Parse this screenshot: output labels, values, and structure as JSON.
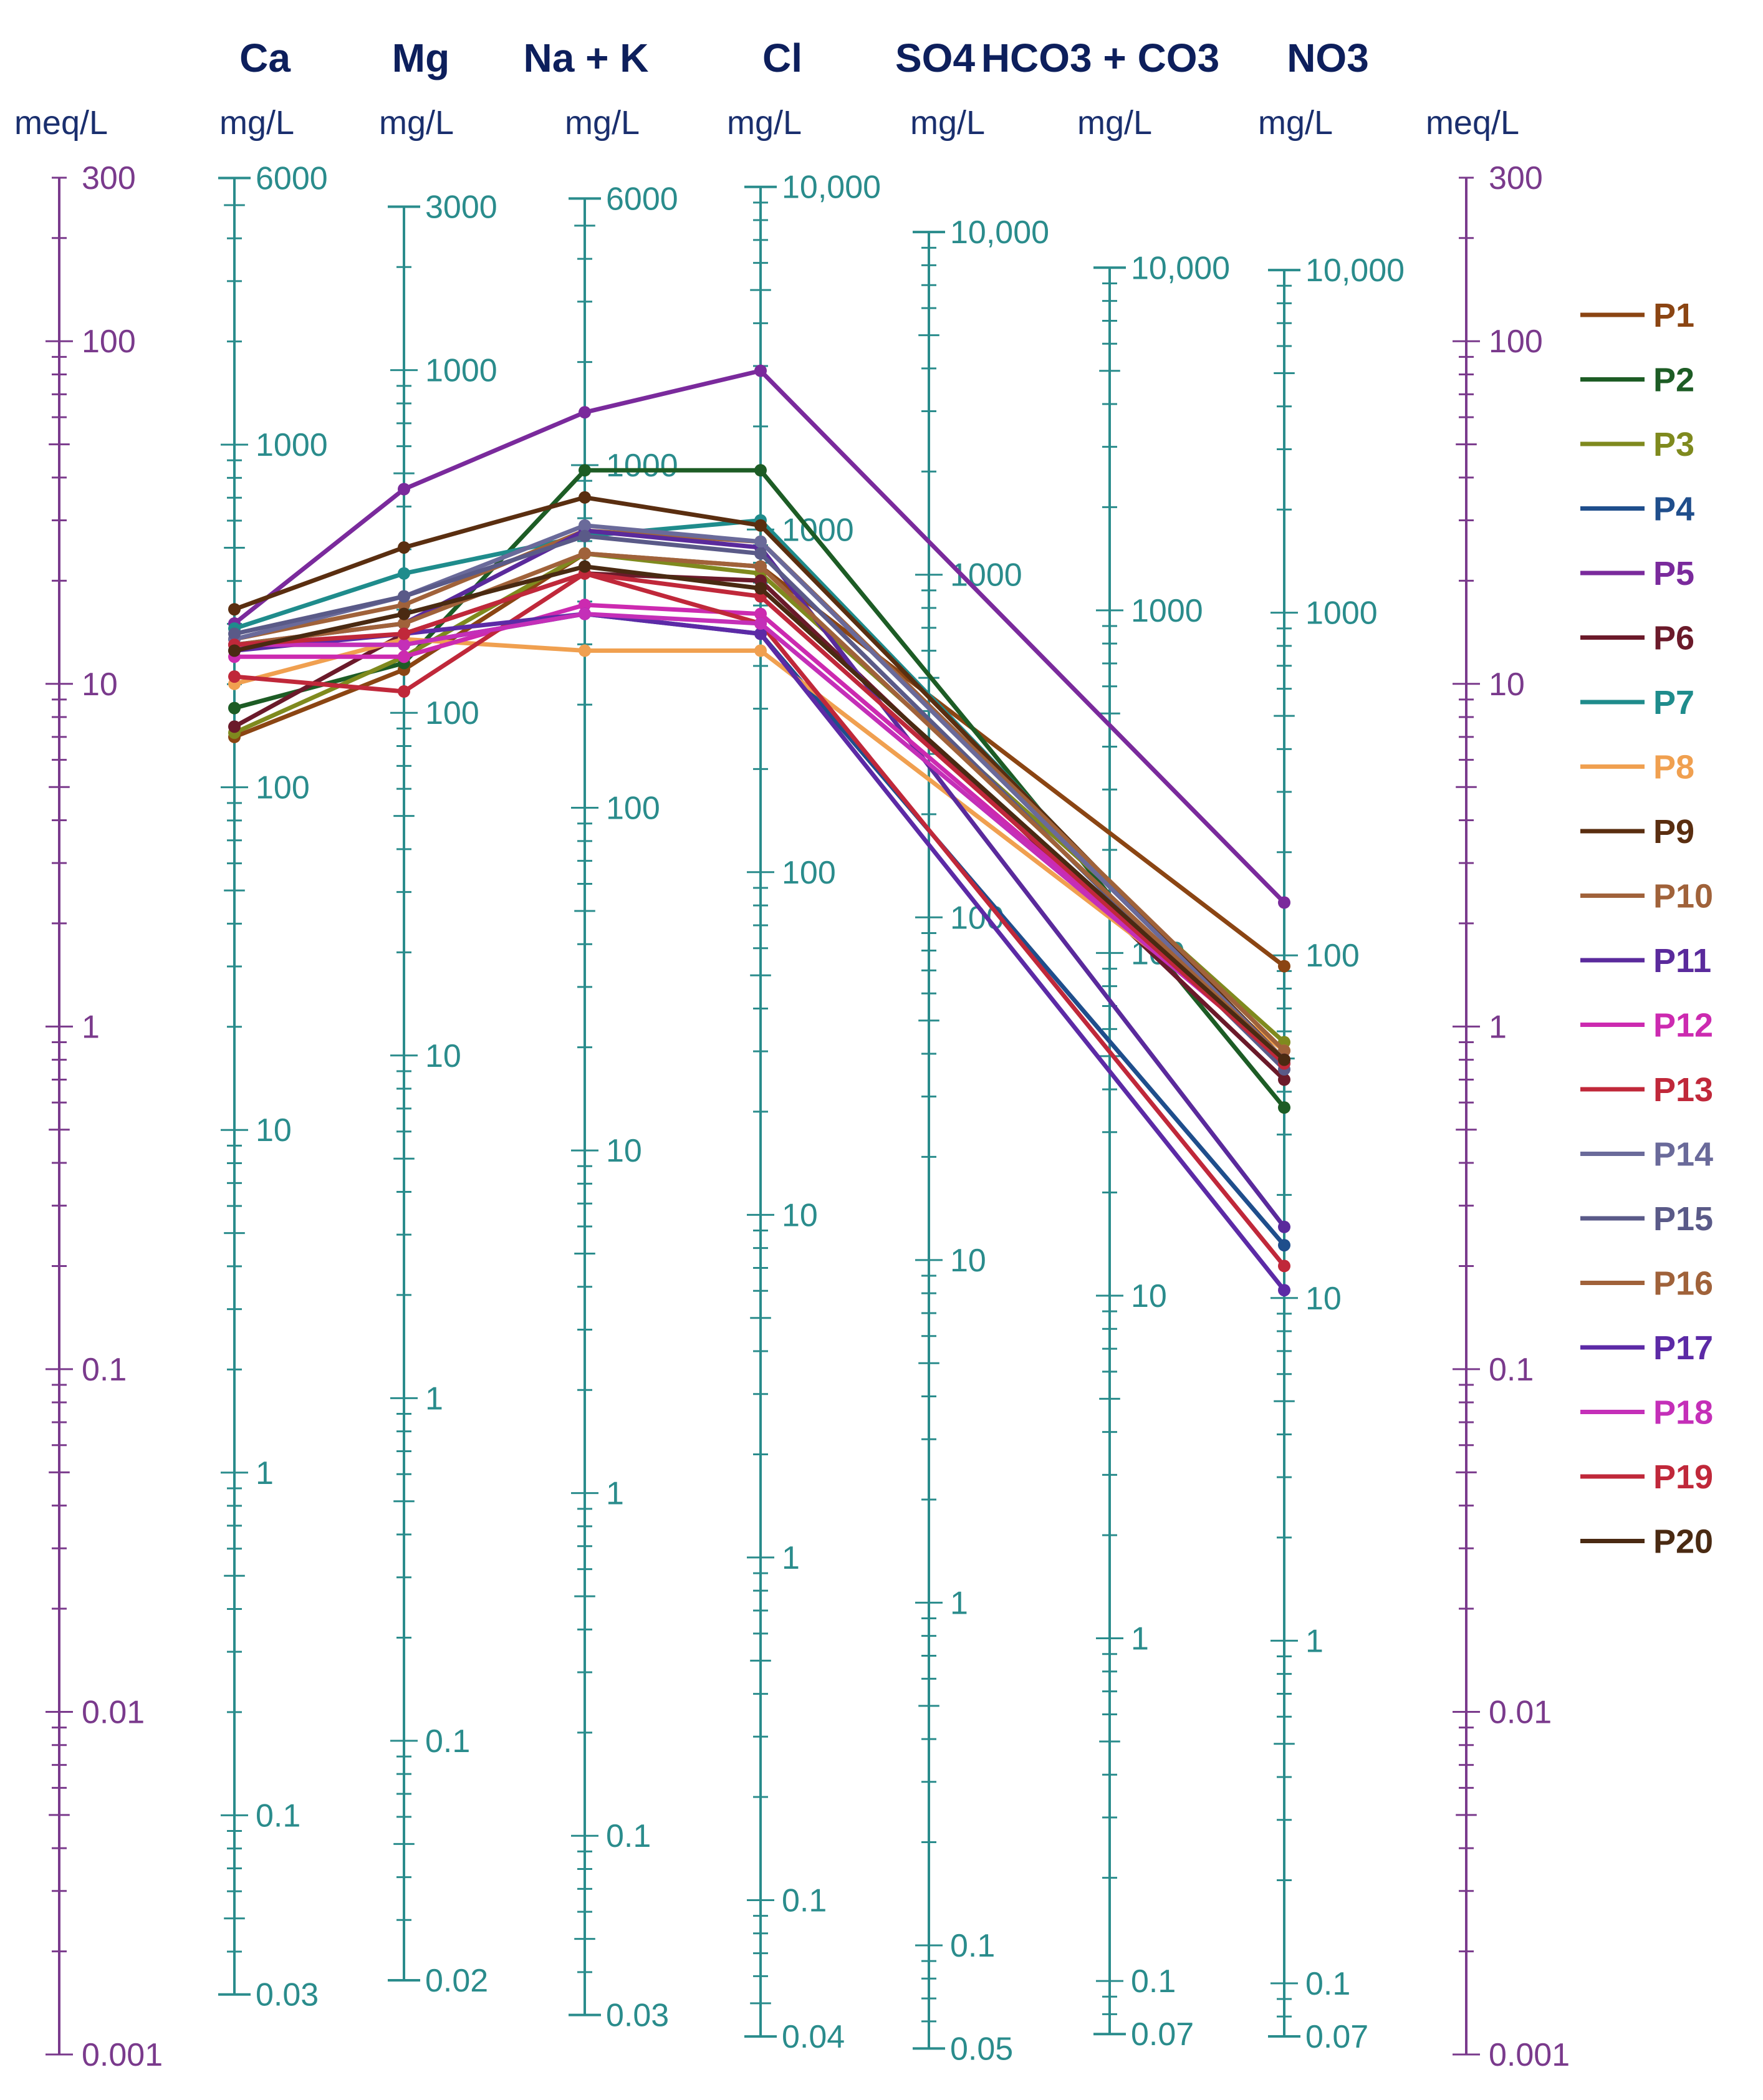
{
  "chart_data": {
    "type": "line",
    "title": "",
    "subtitle": "Schoeller diagram",
    "headers": [
      "Ca",
      "Mg",
      "Na + K",
      "Cl",
      "SO4",
      "HCO3 + CO3",
      "NO3"
    ],
    "units": {
      "left": "meq/L",
      "ions": [
        "mg/L",
        "mg/L",
        "mg/L",
        "mg/L",
        "mg/L",
        "mg/L",
        "mg/L"
      ],
      "right": "meq/L"
    },
    "meq_axis": {
      "min": 0.001,
      "max": 300,
      "tick_labels": [
        "300",
        "100",
        "10",
        "1",
        "0.1",
        "0.01",
        "0.001"
      ]
    },
    "ion_axes": [
      {
        "name": "Ca",
        "meq_factor": 20.04,
        "tick_labels": [
          "6000",
          "1000",
          "100",
          "10",
          "1",
          "0.1",
          "0.03"
        ]
      },
      {
        "name": "Mg",
        "meq_factor": 12.15,
        "tick_labels": [
          "3000",
          "1000",
          "100",
          "10",
          "1",
          "0.1",
          "0.02"
        ]
      },
      {
        "name": "Na + K",
        "meq_factor": 23.0,
        "tick_labels": [
          "6000",
          "1000",
          "100",
          "10",
          "1",
          "0.1",
          "0.03"
        ]
      },
      {
        "name": "Cl",
        "meq_factor": 35.45,
        "tick_labels": [
          "10,000",
          "1000",
          "100",
          "10",
          "1",
          "0.1",
          "0.04"
        ]
      },
      {
        "name": "SO4",
        "meq_factor": 48.03,
        "tick_labels": [
          "10,000",
          "1000",
          "100",
          "10",
          "1",
          "0.1",
          "0.05"
        ]
      },
      {
        "name": "HCO3 + CO3",
        "meq_factor": 61.02,
        "tick_labels": [
          "10,000",
          "1000",
          "100",
          "10",
          "1",
          "0.1",
          "0.07"
        ]
      },
      {
        "name": "NO3",
        "meq_factor": 62.0,
        "tick_labels": [
          "10,000",
          "1000",
          "100",
          "10",
          "1",
          "0.1",
          "0.07"
        ]
      }
    ],
    "series_axes": [
      "Ca",
      "Mg",
      "Na + K",
      "Cl",
      "NO3"
    ],
    "y_units": "meq/L",
    "series": [
      {
        "name": "P1",
        "color": "#8B4513",
        "values": [
          7.0,
          11.0,
          24.0,
          22.0,
          1.5
        ]
      },
      {
        "name": "P2",
        "color": "#1d5c25",
        "values": [
          8.5,
          11.5,
          42.0,
          42.0,
          0.58
        ]
      },
      {
        "name": "P3",
        "color": "#7f8a1e",
        "values": [
          7.2,
          12.0,
          24.0,
          21.0,
          0.9
        ]
      },
      {
        "name": "P4",
        "color": "#1f4e8c",
        "values": [
          13.0,
          13.0,
          16.0,
          14.0,
          0.23
        ]
      },
      {
        "name": "P5",
        "color": "#7a2a9c",
        "values": [
          15.0,
          37.0,
          62.0,
          82.0,
          2.3
        ]
      },
      {
        "name": "P6",
        "color": "#6b1a2a",
        "values": [
          7.5,
          14.0,
          21.0,
          20.0,
          0.7
        ]
      },
      {
        "name": "P7",
        "color": "#1f8c8c",
        "values": [
          14.5,
          21.0,
          27.0,
          30.0,
          0.78
        ]
      },
      {
        "name": "P8",
        "color": "#f0a050",
        "values": [
          10.0,
          13.5,
          12.5,
          12.5,
          0.85
        ]
      },
      {
        "name": "P9",
        "color": "#5a2e10",
        "values": [
          16.5,
          25.0,
          35.0,
          29.0,
          0.8
        ]
      },
      {
        "name": "P10",
        "color": "#a0623a",
        "values": [
          13.5,
          17.0,
          28.0,
          26.0,
          0.85
        ]
      },
      {
        "name": "P11",
        "color": "#5a2a9c",
        "values": [
          13.0,
          15.0,
          28.0,
          25.0,
          0.26
        ]
      },
      {
        "name": "P12",
        "color": "#cc2ab0",
        "values": [
          12.0,
          12.0,
          17.0,
          16.0,
          0.8
        ]
      },
      {
        "name": "P13",
        "color": "#c0283a",
        "values": [
          10.5,
          9.5,
          21.0,
          15.0,
          0.2
        ]
      },
      {
        "name": "P14",
        "color": "#6a6a9a",
        "values": [
          13.5,
          18.0,
          29.0,
          26.0,
          0.8
        ]
      },
      {
        "name": "P15",
        "color": "#5a5a88",
        "values": [
          14.0,
          18.0,
          27.0,
          24.0,
          0.75
        ]
      },
      {
        "name": "P16",
        "color": "#a0623a",
        "values": [
          13.0,
          15.0,
          24.0,
          22.0,
          0.8
        ]
      },
      {
        "name": "P17",
        "color": "#5c2aa6",
        "values": [
          12.5,
          14.0,
          16.0,
          14.0,
          0.17
        ]
      },
      {
        "name": "P18",
        "color": "#c42fb8",
        "values": [
          13.0,
          13.0,
          16.0,
          15.0,
          0.8
        ]
      },
      {
        "name": "P19",
        "color": "#c0283a",
        "values": [
          13.0,
          14.0,
          21.0,
          18.0,
          0.78
        ]
      },
      {
        "name": "P20",
        "color": "#4a2a12",
        "values": [
          12.5,
          16.0,
          22.0,
          19.0,
          0.8
        ]
      }
    ],
    "legend": "right",
    "grid": false,
    "colors": {
      "meq_axis": "#7a3a8c",
      "ion_axis": "#2a8c8c",
      "ion_label": "#2a8c8c",
      "meq_label": "#7a3a8c",
      "header": "#0d1f5c"
    }
  }
}
